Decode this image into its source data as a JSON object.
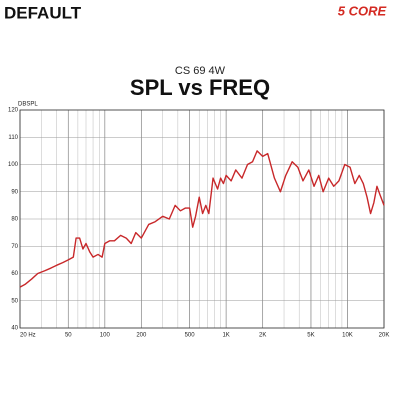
{
  "header": {
    "label": "DEFAULT",
    "logo": "5 CORE"
  },
  "chart_data": {
    "type": "line",
    "subtitle": "CS 69 4W",
    "title": "SPL vs FREQ",
    "ylabel": "DBSPL",
    "log_x": true,
    "grid": true,
    "xlim": [
      20,
      20000
    ],
    "ylim": [
      40,
      120
    ],
    "xticks": [
      {
        "value": 20,
        "label": "20 Hz"
      },
      50,
      100,
      200,
      500,
      {
        "value": 1000,
        "label": "1K"
      },
      {
        "value": 2000,
        "label": "2K"
      },
      {
        "value": 5000,
        "label": "5K"
      },
      {
        "value": 10000,
        "label": "10K"
      },
      {
        "value": 20000,
        "label": "20K"
      }
    ],
    "yticks": [
      40,
      50,
      60,
      70,
      80,
      90,
      100,
      110,
      120
    ],
    "x": [
      20,
      22,
      25,
      28,
      32,
      36,
      40,
      45,
      50,
      55,
      58,
      62,
      66,
      70,
      75,
      80,
      88,
      95,
      100,
      110,
      120,
      135,
      150,
      165,
      180,
      200,
      230,
      260,
      300,
      340,
      380,
      420,
      460,
      500,
      530,
      560,
      600,
      640,
      680,
      720,
      780,
      850,
      900,
      950,
      1000,
      1100,
      1200,
      1350,
      1500,
      1650,
      1800,
      2000,
      2200,
      2500,
      2800,
      3100,
      3500,
      3900,
      4300,
      4800,
      5300,
      5800,
      6300,
      7000,
      7700,
      8500,
      9500,
      10500,
      11500,
      12500,
      13500,
      14500,
      15500,
      16500,
      17500,
      18500,
      20000
    ],
    "series": [
      {
        "name": "SPL",
        "color": "#c8282a",
        "values": [
          55,
          56,
          58,
          60,
          61,
          62,
          63,
          64,
          65,
          66,
          73,
          73,
          69,
          71,
          68,
          66,
          67,
          66,
          71,
          72,
          72,
          74,
          73,
          71,
          75,
          73,
          78,
          79,
          81,
          80,
          85,
          83,
          84,
          84,
          77,
          81,
          88,
          82,
          85,
          82,
          95,
          91,
          95,
          93,
          96,
          94,
          98,
          95,
          100,
          101,
          105,
          103,
          104,
          95,
          90,
          96,
          101,
          99,
          94,
          98,
          92,
          96,
          90,
          95,
          92,
          94,
          100,
          99,
          93,
          96,
          93,
          88,
          82,
          86,
          92,
          89,
          85
        ]
      }
    ]
  }
}
